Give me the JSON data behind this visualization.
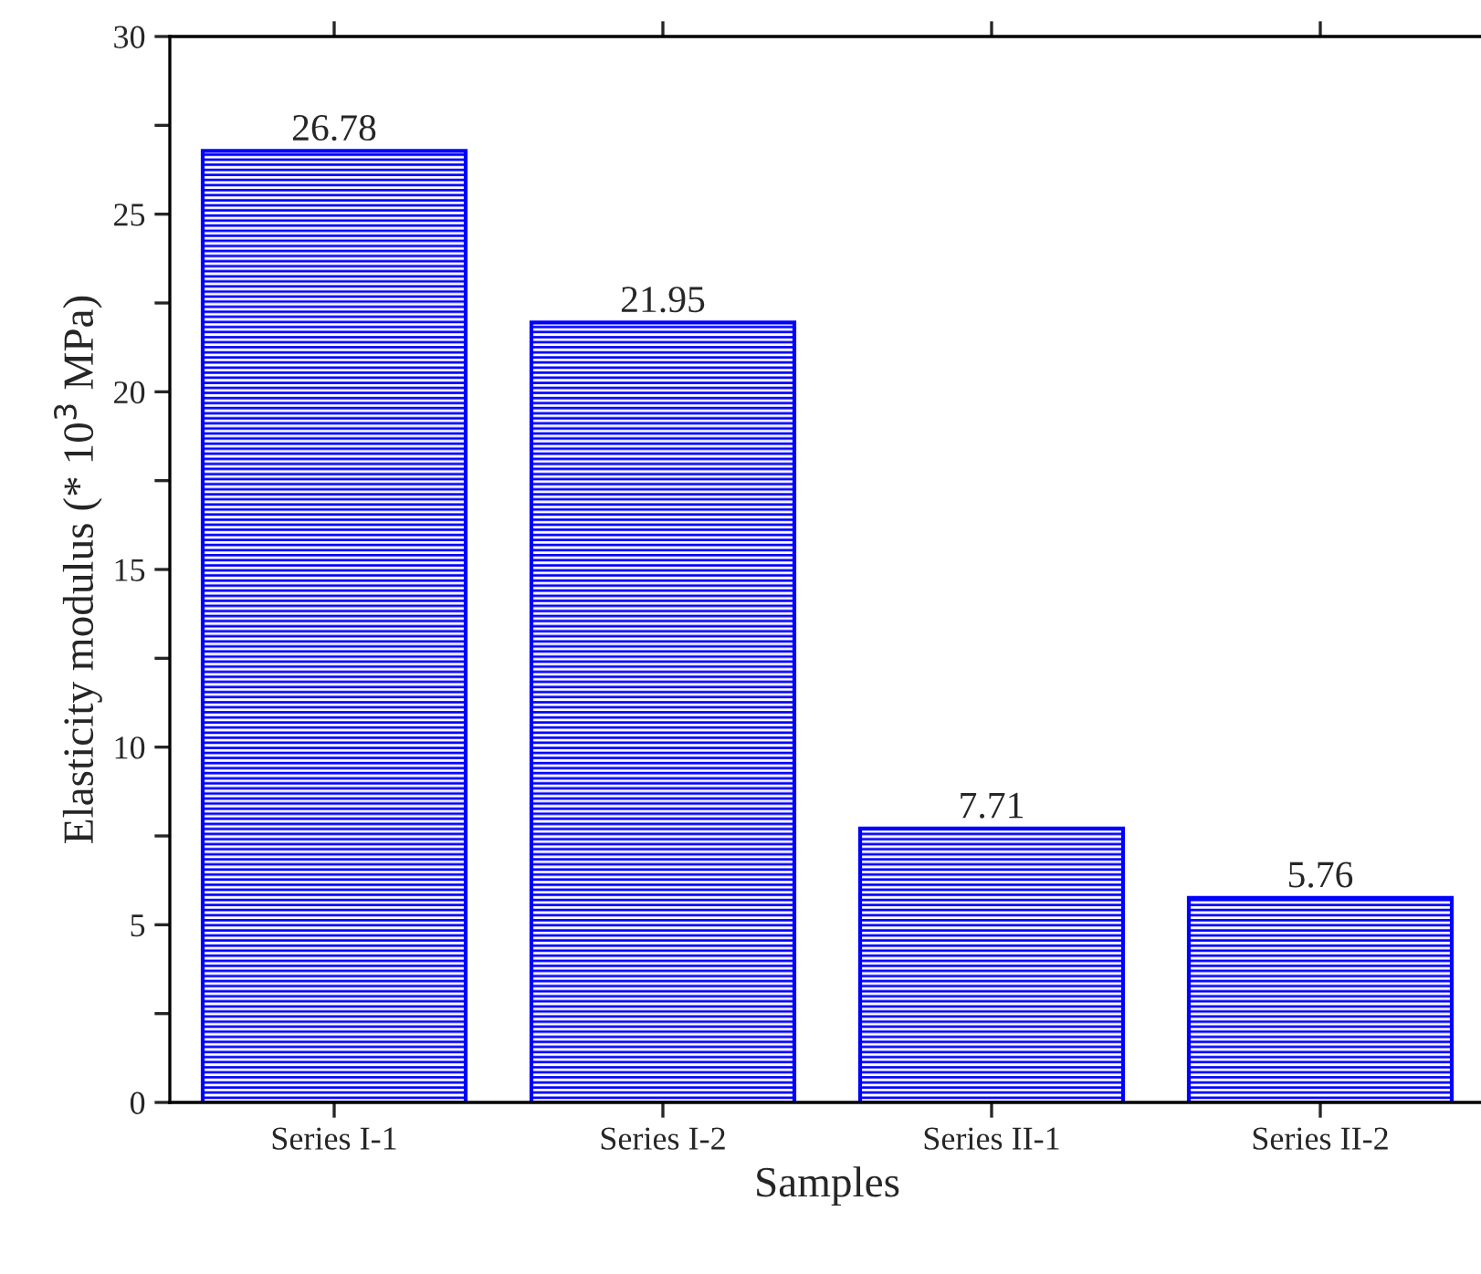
{
  "chart_data": {
    "type": "bar",
    "categories": [
      "Series I-1",
      "Series I-2",
      "Series II-1",
      "Series II-2"
    ],
    "values": [
      26.78,
      21.95,
      7.71,
      5.76
    ],
    "color": "#0000ff",
    "xlabel": "Samples",
    "ylabel": "Elasticity modulus (* 10$^{3}$ MPa)",
    "ylim": [
      0,
      30
    ],
    "yticks": [
      0,
      {
        "value": 2.5,
        "label": null
      },
      5,
      {
        "value": 7.5,
        "label": null
      },
      10,
      {
        "value": 12.5,
        "label": null
      },
      15,
      {
        "value": 17.5,
        "label": null
      },
      20,
      {
        "value": 22.5,
        "label": null
      },
      25,
      {
        "value": 27.5,
        "label": null
      },
      30
    ],
    "data_labels": true,
    "grid": false,
    "legend": false
  }
}
